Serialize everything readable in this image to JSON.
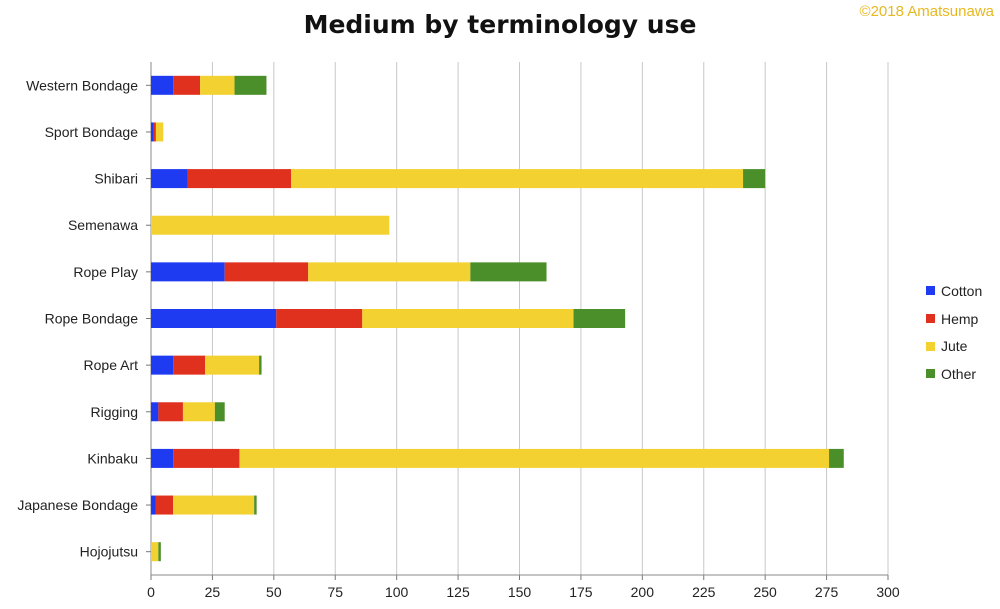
{
  "copyright": "©2018 Amatsunawa",
  "chart_data": {
    "type": "bar",
    "orientation": "horizontal",
    "stacked": true,
    "title": "Medium by terminology use",
    "xlabel": "",
    "ylabel": "",
    "xlim": [
      0,
      300
    ],
    "xticks": [
      0,
      25,
      50,
      75,
      100,
      125,
      150,
      175,
      200,
      225,
      250,
      275,
      300
    ],
    "grid": true,
    "legend_position": "right",
    "categories": [
      "Western Bondage",
      "Sport Bondage",
      "Shibari",
      "Semenawa",
      "Rope Play",
      "Rope Bondage",
      "Rope Art",
      "Rigging",
      "Kinbaku",
      "Japanese Bondage",
      "Hojojutsu"
    ],
    "series": [
      {
        "name": "Cotton",
        "color": "#1f3bf2",
        "values": [
          9,
          1,
          15,
          0,
          30,
          51,
          9,
          3,
          9,
          2,
          0
        ]
      },
      {
        "name": "Hemp",
        "color": "#e0301e",
        "values": [
          11,
          1,
          42,
          0,
          34,
          35,
          13,
          10,
          27,
          7,
          0
        ]
      },
      {
        "name": "Jute",
        "color": "#f3d130",
        "values": [
          14,
          3,
          184,
          97,
          66,
          86,
          22,
          13,
          240,
          33,
          3
        ]
      },
      {
        "name": "Other",
        "color": "#4a8f2a",
        "values": [
          13,
          0,
          9,
          0,
          31,
          21,
          1,
          4,
          6,
          1,
          1
        ]
      }
    ]
  }
}
